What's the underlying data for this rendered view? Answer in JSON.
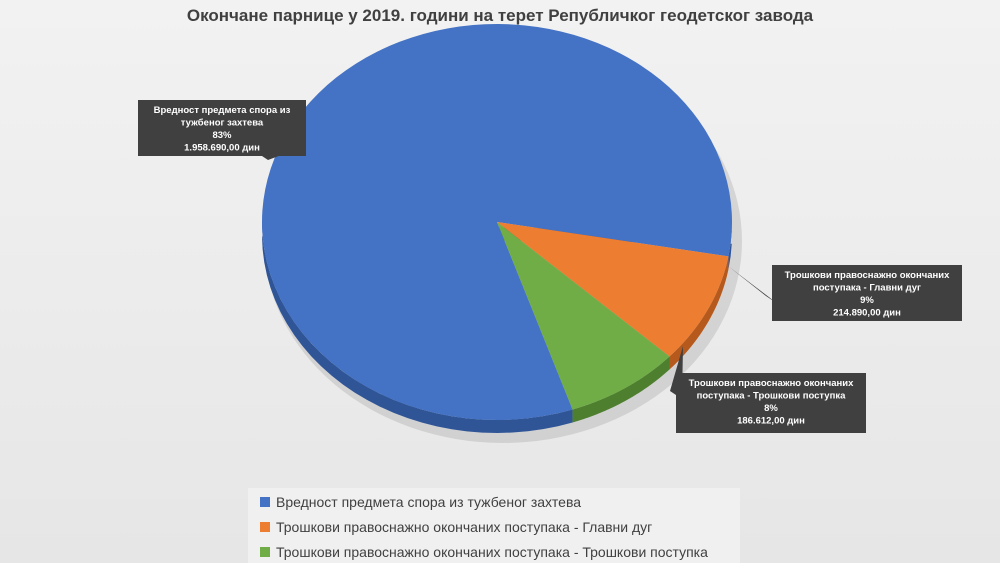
{
  "chart_data": {
    "type": "pie",
    "title": "Окончане парнице у 2019. години на терет Републичког геодетског завода",
    "slices": [
      {
        "name": "Вредност предмета спора из тужбеног захтева",
        "label_lines": [
          "Вредност предмета спора из",
          "тужбеног захтева"
        ],
        "percent_label": "83%",
        "value": 1958690.0,
        "value_label": "1.958.690,00 дин",
        "color": "#4472c4",
        "side_color": "#2f5597"
      },
      {
        "name": "Трошкови правоснажно окончаних поступака - Главни дуг",
        "label_lines": [
          "Трошкови правоснажно окончаних",
          "поступака - Главни дуг"
        ],
        "percent_label": "9%",
        "value": 214890.0,
        "value_label": "214.890,00 дин",
        "color": "#ed7d31",
        "side_color": "#b5591c"
      },
      {
        "name": "Трошкови правоснажно окончаних поступака - Трошкови поступка",
        "label_lines": [
          "Трошкови правоснажно окончаних",
          "поступака - Трошкови поступка"
        ],
        "percent_label": "8%",
        "value": 186612.0,
        "value_label": "186.612,00 дин",
        "color": "#70ad47",
        "side_color": "#4e7f2f"
      }
    ],
    "legend_position": "bottom"
  }
}
